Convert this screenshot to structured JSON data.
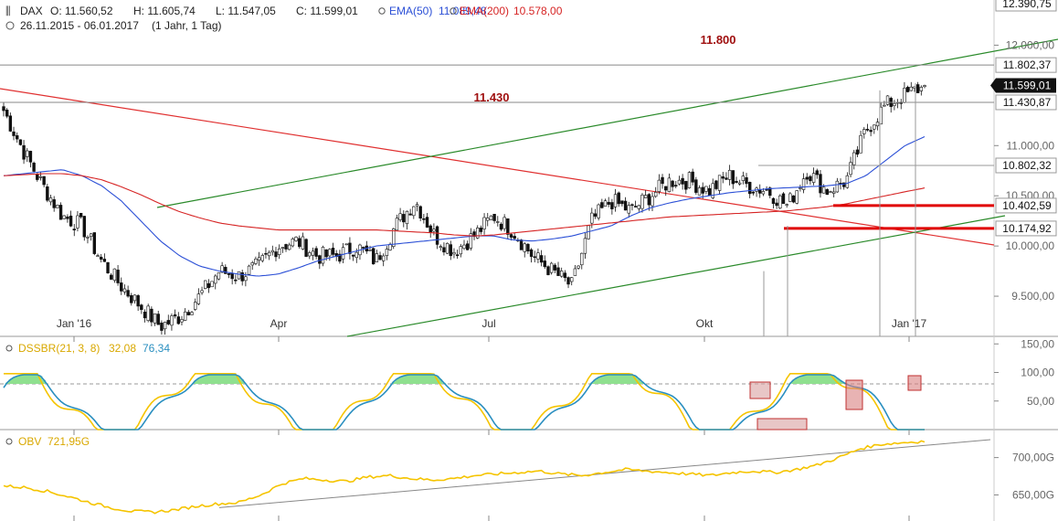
{
  "header": {
    "symbol": "DAX",
    "open": "O: 11.560,52",
    "high": "H: 11.605,74",
    "low": "L: 11.547,05",
    "close": "C: 11.599,01",
    "ema50_label": "EMA(50)",
    "ema50_value": "11.089,48",
    "ema200_label": "EMA(200)",
    "ema200_value": "10.578,00",
    "range": "26.11.2015 - 06.01.2017",
    "interval": "(1 Jahr, 1 Tag)"
  },
  "colors": {
    "candle": "#111111",
    "ema50": "#2b4fd6",
    "ema200": "#d62424",
    "trend_green": "#2a8a2a",
    "trend_red": "#e03030",
    "level_red": "#e00000",
    "annot_red": "#a01010",
    "dss_yellow": "#f5c400",
    "dss_blue": "#2a8fc0",
    "dss_fill": "#8fe08f",
    "obv_yellow": "#f5c400"
  },
  "chart_data": [
    {
      "type": "line",
      "panel": "price",
      "title": "DAX",
      "ylim": [
        9100,
        12450
      ],
      "x_ticks": [
        "Jan '16",
        "Apr",
        "Jul",
        "Okt",
        "Jan '17"
      ],
      "y_ticks": [
        "12.390,75",
        "12.000,00",
        "11.802,37",
        "11.599,01",
        "11.430,87",
        "11.000,00",
        "10.802,32",
        "10.500,00",
        "10.402,59",
        "10.174,92",
        "10.000,00",
        "9.500,00"
      ],
      "annotations": [
        "11.800",
        "11.430"
      ],
      "levels": [
        11802.37,
        11430.87,
        10802.32,
        10402.59,
        10174.92
      ],
      "series": [
        {
          "name": "EMA(50)",
          "values": [
            10700,
            10720,
            10740,
            10760,
            10700,
            10600,
            10450,
            10250,
            10050,
            9900,
            9800,
            9750,
            9720,
            9700,
            9720,
            9780,
            9850,
            9900,
            9950,
            10000,
            10020,
            10040,
            10060,
            10080,
            10100,
            10100,
            10060,
            10050,
            10070,
            10100,
            10150,
            10200,
            10300,
            10380,
            10430,
            10470,
            10500,
            10530,
            10550,
            10570,
            10580,
            10590,
            10600,
            10620,
            10700,
            10850,
            11000,
            11089
          ]
        },
        {
          "name": "EMA(200)",
          "values": [
            10700,
            10710,
            10720,
            10720,
            10700,
            10660,
            10590,
            10510,
            10420,
            10340,
            10280,
            10230,
            10200,
            10180,
            10160,
            10160,
            10160,
            10160,
            10160,
            10160,
            10150,
            10140,
            10130,
            10110,
            10100,
            10110,
            10130,
            10150,
            10170,
            10190,
            10210,
            10230,
            10250,
            10270,
            10290,
            10300,
            10310,
            10320,
            10330,
            10340,
            10350,
            10370,
            10390,
            10420,
            10460,
            10500,
            10540,
            10578
          ]
        },
        {
          "name": "close",
          "values": [
            11350,
            10950,
            10600,
            10300,
            10200,
            9850,
            9600,
            9400,
            9200,
            9300,
            9500,
            9750,
            9700,
            9800,
            10000,
            10050,
            9900,
            9900,
            10000,
            9850,
            10200,
            10450,
            10100,
            9950,
            10100,
            10300,
            10150,
            9900,
            9750,
            9600,
            10250,
            10450,
            10350,
            10500,
            10650,
            10650,
            10550,
            10700,
            10600,
            10550,
            10400,
            10750,
            10550,
            10650,
            11150,
            11400,
            11500,
            11599
          ]
        }
      ]
    },
    {
      "type": "line",
      "panel": "dss",
      "title": "DSSBR(21, 3, 8)",
      "values_label": [
        "32,08",
        "76,34"
      ],
      "ylim": [
        0,
        160
      ],
      "y_ticks": [
        "150,00",
        "100,00",
        "50,00"
      ]
    },
    {
      "type": "line",
      "panel": "obv",
      "title": "OBV",
      "value_label": "721,95G",
      "ylim": [
        620,
        735
      ],
      "y_ticks": [
        "700,00G",
        "650,00G"
      ]
    }
  ]
}
